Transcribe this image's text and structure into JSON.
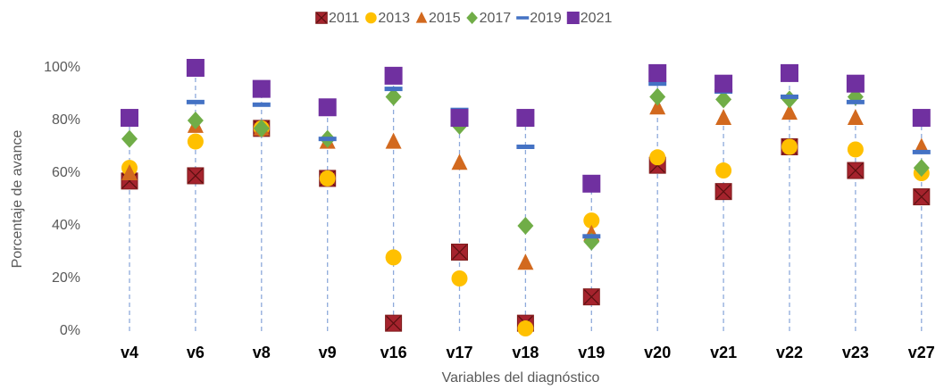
{
  "chart_data": {
    "type": "scatter",
    "categories": [
      "v4",
      "v6",
      "v8",
      "v9",
      "v16",
      "v17",
      "v18",
      "v19",
      "v20",
      "v21",
      "v22",
      "v23",
      "v27"
    ],
    "x_label": "Variables del diagnóstico",
    "y_label": "Porcentaje de avance",
    "ylim": [
      0,
      100
    ],
    "yticks": [
      {
        "value": 0,
        "label": "0%"
      },
      {
        "value": 20,
        "label": "20%"
      },
      {
        "value": 40,
        "label": "40%"
      },
      {
        "value": 60,
        "label": "60%"
      },
      {
        "value": 80,
        "label": "80%"
      },
      {
        "value": 100,
        "label": "100%"
      }
    ],
    "grid": false,
    "legend": "top",
    "series": [
      {
        "name": "2011",
        "color": "#a5232d",
        "marker": "square-x",
        "values": [
          57,
          59,
          77,
          58,
          3,
          30,
          3,
          13,
          63,
          53,
          70,
          61,
          51
        ]
      },
      {
        "name": "2013",
        "color": "#ffc000",
        "marker": "circle",
        "values": [
          62,
          72,
          77,
          58,
          28,
          20,
          1,
          42,
          66,
          61,
          70,
          69,
          60
        ]
      },
      {
        "name": "2015",
        "color": "#d2691e",
        "marker": "triangle",
        "values": [
          60,
          78,
          77,
          72,
          72,
          64,
          26,
          37,
          85,
          81,
          83,
          81,
          70
        ]
      },
      {
        "name": "2017",
        "color": "#70ad47",
        "marker": "diamond",
        "values": [
          73,
          80,
          77,
          73,
          89,
          78,
          40,
          34,
          89,
          88,
          88,
          89,
          62
        ]
      },
      {
        "name": "2019",
        "color": "#4472c4",
        "marker": "dash",
        "values": [
          null,
          87,
          86,
          73,
          92,
          84,
          70,
          36,
          94,
          91,
          89,
          87,
          68
        ]
      },
      {
        "name": "2021",
        "color": "#7030a0",
        "marker": "square",
        "values": [
          81,
          100,
          92,
          85,
          97,
          81,
          81,
          56,
          98,
          94,
          98,
          94,
          81
        ]
      }
    ]
  }
}
